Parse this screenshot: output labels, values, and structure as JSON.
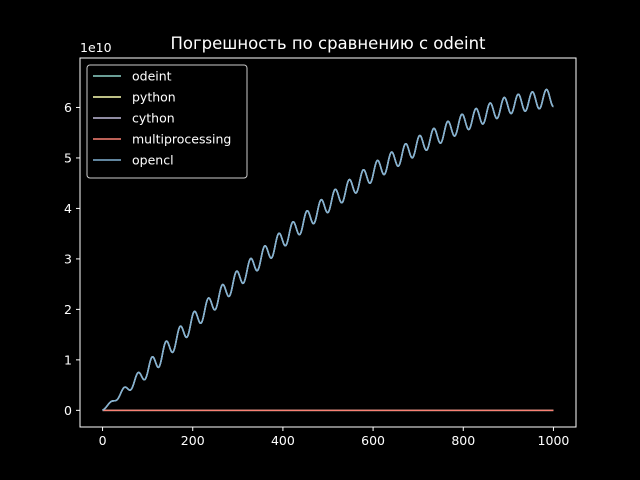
{
  "chart_data": {
    "type": "line",
    "title": "Погрешность по сравнению с odeint",
    "xlabel": "",
    "ylabel": "",
    "y_offset_text": "1e10",
    "xlim": [
      -50,
      1050
    ],
    "ylim": [
      -0.33,
      6.98
    ],
    "xticks": [
      0,
      200,
      400,
      600,
      800,
      1000
    ],
    "xtick_labels": [
      "0",
      "200",
      "400",
      "600",
      "800",
      "1000"
    ],
    "yticks": [
      0,
      1,
      2,
      3,
      4,
      5,
      6
    ],
    "ytick_labels": [
      "0",
      "1",
      "2",
      "3",
      "4",
      "5",
      "6"
    ],
    "grid": false,
    "legend_position": "upper-left",
    "background": "#000000",
    "series": [
      {
        "name": "odeint",
        "color": "#8dd3c7",
        "constant": 0,
        "x_range": [
          0,
          1000
        ]
      },
      {
        "name": "python",
        "color": "#feffb3",
        "trend": [
          [
            0,
            0
          ],
          [
            100,
            0.8
          ],
          [
            200,
            1.75
          ],
          [
            300,
            2.6
          ],
          [
            400,
            3.4
          ],
          [
            500,
            4.1
          ],
          [
            600,
            4.72
          ],
          [
            700,
            5.25
          ],
          [
            800,
            5.7
          ],
          [
            900,
            6.05
          ],
          [
            1000,
            6.2
          ]
        ],
        "oscillation_amplitude": 0.18,
        "oscillation_period": 31.25,
        "overlaps": "cython"
      },
      {
        "name": "cython",
        "color": "#bfbbd9",
        "trend": [
          [
            0,
            0
          ],
          [
            100,
            0.8
          ],
          [
            200,
            1.75
          ],
          [
            300,
            2.6
          ],
          [
            400,
            3.4
          ],
          [
            500,
            4.1
          ],
          [
            600,
            4.72
          ],
          [
            700,
            5.25
          ],
          [
            800,
            5.7
          ],
          [
            900,
            6.05
          ],
          [
            1000,
            6.2
          ]
        ],
        "oscillation_amplitude": 0.18,
        "oscillation_period": 31.25
      },
      {
        "name": "multiprocessing",
        "color": "#fa8174",
        "constant": 0,
        "x_range": [
          0,
          1000
        ],
        "overlaps": "odeint"
      },
      {
        "name": "opencl",
        "color": "#81b1d2",
        "trend": [
          [
            0,
            0
          ],
          [
            100,
            0.8
          ],
          [
            200,
            1.75
          ],
          [
            300,
            2.6
          ],
          [
            400,
            3.4
          ],
          [
            500,
            4.1
          ],
          [
            600,
            4.72
          ],
          [
            700,
            5.25
          ],
          [
            800,
            5.7
          ],
          [
            900,
            6.05
          ],
          [
            1000,
            6.2
          ]
        ],
        "oscillation_amplitude": 0.18,
        "oscillation_period": 31.25,
        "overlaps": "cython"
      }
    ]
  }
}
